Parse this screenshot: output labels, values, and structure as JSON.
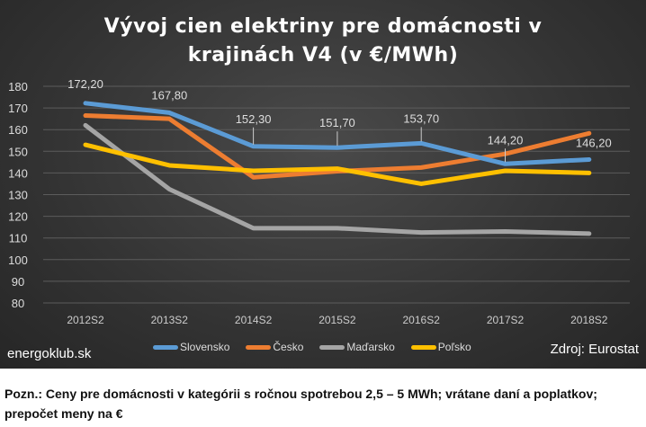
{
  "chart_data": {
    "type": "line",
    "title": [
      "Vývoj cien elektriny pre domácnosti v",
      "krajinách V4 (v €/MWh)"
    ],
    "categories": [
      "2012S2",
      "2013S2",
      "2014S2",
      "2015S2",
      "2016S2",
      "2017S2",
      "2018S2"
    ],
    "ylim": [
      80,
      180
    ],
    "yticks": [
      180,
      170,
      160,
      150,
      140,
      130,
      120,
      110,
      100,
      90,
      80
    ],
    "grid": true,
    "legend_position": "bottom",
    "series": [
      {
        "name": "Slovensko",
        "color": "#5b9bd5",
        "values": [
          172.2,
          167.8,
          152.3,
          151.7,
          153.7,
          144.2,
          146.2
        ],
        "data_labels": [
          "172,20",
          "167,80",
          "152,30",
          "151,70",
          "153,70",
          "144,20",
          "146,20"
        ]
      },
      {
        "name": "Česko",
        "color": "#ed7d31",
        "values": [
          166.5,
          165,
          138,
          140.8,
          142.5,
          148.8,
          158.3
        ]
      },
      {
        "name": "Maďarsko",
        "color": "#a5a5a5",
        "values": [
          162,
          132.5,
          114.5,
          114.5,
          112.5,
          113,
          112
        ]
      },
      {
        "name": "Poľsko",
        "color": "#ffc000",
        "values": [
          153,
          143.5,
          141,
          142,
          135,
          141,
          140
        ]
      }
    ]
  },
  "brand": "energoklub.sk",
  "source": "Zdroj: Eurostat",
  "note": [
    "Pozn.: Ceny pre domácnosti v kategórii s ročnou spotrebou 2,5 – 5 MWh; vrátane daní a poplatkov;",
    "prepočet meny na €"
  ]
}
